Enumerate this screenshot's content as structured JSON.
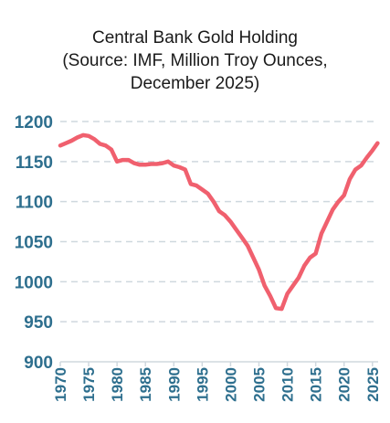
{
  "chart_data": {
    "type": "line",
    "title_lines": [
      "Central Bank Gold Holding",
      "(Source: IMF, Million Troy Ounces,",
      "December 2025)"
    ],
    "xlabel": "",
    "ylabel": "",
    "xlim": [
      1970,
      2026
    ],
    "ylim": [
      900,
      1200
    ],
    "x_ticks": [
      "1970",
      "1975",
      "1980",
      "1985",
      "1990",
      "1995",
      "2000",
      "2005",
      "2010",
      "2015",
      "2020",
      "2025"
    ],
    "y_ticks": [
      "900",
      "950",
      "1000",
      "1050",
      "1100",
      "1150",
      "1200"
    ],
    "grid": "horizontal dashed",
    "series": [
      {
        "color": "#f0606e",
        "x": [
          1970,
          1971,
          1972,
          1973,
          1974,
          1975,
          1976,
          1977,
          1978,
          1979,
          1980,
          1981,
          1982,
          1983,
          1984,
          1985,
          1986,
          1987,
          1988,
          1989,
          1990,
          1991,
          1992,
          1993,
          1994,
          1995,
          1996,
          1997,
          1998,
          1999,
          2000,
          2001,
          2002,
          2003,
          2004,
          2005,
          2006,
          2007,
          2008,
          2009,
          2010,
          2011,
          2012,
          2013,
          2014,
          2015,
          2016,
          2017,
          2018,
          2019,
          2020,
          2021,
          2022,
          2023,
          2024,
          2025,
          2025.9
        ],
        "values": [
          1170,
          1173,
          1176,
          1180,
          1183,
          1182,
          1178,
          1172,
          1170,
          1165,
          1150,
          1152,
          1152,
          1148,
          1146,
          1146,
          1147,
          1147,
          1148,
          1150,
          1145,
          1143,
          1140,
          1122,
          1120,
          1115,
          1110,
          1100,
          1088,
          1083,
          1075,
          1065,
          1055,
          1045,
          1030,
          1015,
          995,
          982,
          967,
          966,
          985,
          995,
          1005,
          1020,
          1030,
          1035,
          1060,
          1075,
          1090,
          1100,
          1108,
          1128,
          1140,
          1145,
          1155,
          1164,
          1173
        ]
      }
    ]
  },
  "colors": {
    "axis_text": "#2e6f8e",
    "grid": "#cfd8de",
    "line": "#f0606e"
  }
}
